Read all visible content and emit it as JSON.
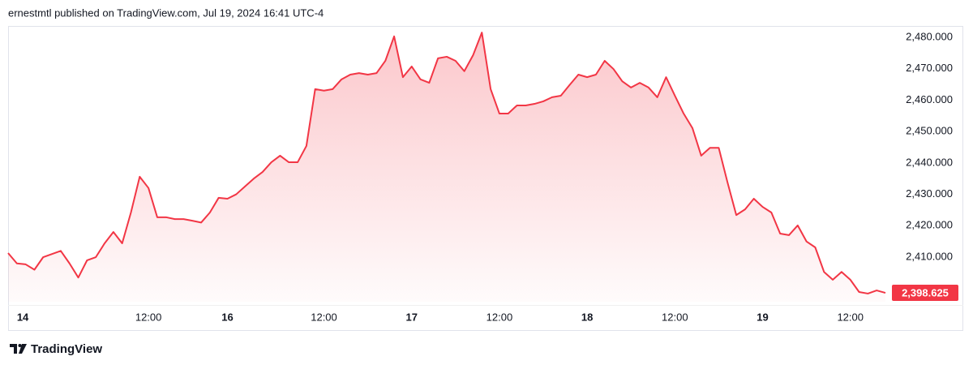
{
  "chart_data": {
    "type": "area",
    "header_note": "ernestmtl published on TradingView.com, Jul 19, 2024 16:41 UTC-4",
    "footer_brand": "TradingView",
    "categories": [
      null,
      "14",
      null,
      null,
      null,
      null,
      null,
      null,
      null,
      null,
      null,
      null,
      null,
      null,
      null,
      null,
      "12:00",
      null,
      null,
      null,
      null,
      null,
      null,
      null,
      null,
      "16",
      null,
      null,
      null,
      null,
      null,
      null,
      null,
      null,
      null,
      null,
      "12:00",
      null,
      null,
      null,
      null,
      null,
      null,
      null,
      null,
      null,
      "17",
      null,
      null,
      null,
      null,
      null,
      null,
      null,
      null,
      null,
      "12:00",
      null,
      null,
      null,
      null,
      null,
      null,
      null,
      null,
      null,
      "18",
      null,
      null,
      null,
      null,
      null,
      null,
      null,
      null,
      null,
      "12:00",
      null,
      null,
      null,
      null,
      null,
      null,
      null,
      null,
      null,
      "19",
      null,
      null,
      null,
      null,
      null,
      null,
      null,
      null,
      null,
      "12:00",
      null,
      null,
      null,
      null
    ],
    "series": [
      {
        "color": "#f23645",
        "values": [
          2411.3,
          2408,
          2407.7,
          2406,
          2410,
          2411,
          2412,
          2408,
          2403.5,
          2409,
          2410,
          2414.4,
          2418,
          2414.4,
          2424.2,
          2435.6,
          2432,
          2422.7,
          2422.7,
          2422.1,
          2422.1,
          2421.6,
          2421,
          2424.2,
          2428.9,
          2428.6,
          2430,
          2432.5,
          2435,
          2437.1,
          2440.2,
          2442.3,
          2440.2,
          2440.2,
          2445.4,
          2463.5,
          2463,
          2463.5,
          2466.6,
          2468.1,
          2468.6,
          2468.1,
          2468.6,
          2472.5,
          2480.3,
          2467.3,
          2470.7,
          2466.6,
          2465.5,
          2473.3,
          2473.8,
          2472.5,
          2469.2,
          2474.3,
          2481.5,
          2463.5,
          2455.7,
          2455.7,
          2458.3,
          2458.3,
          2458.8,
          2459.6,
          2460.9,
          2461.4,
          2464.8,
          2468.1,
          2467.3,
          2468.1,
          2472.5,
          2469.9,
          2466,
          2464,
          2465.5,
          2464,
          2460.9,
          2467.3,
          2461.4,
          2455.7,
          2451.1,
          2442.3,
          2444.8,
          2444.8,
          2433.8,
          2423.4,
          2425.2,
          2428.6,
          2426,
          2424.2,
          2417.5,
          2417,
          2420.1,
          2415,
          2413.1,
          2405.3,
          2402.8,
          2405.3,
          2402.8,
          2398.9,
          2398.4,
          2399.4,
          2398.625
        ],
        "value_labels": [
          null,
          null,
          null,
          null,
          null,
          null,
          null,
          null,
          null,
          null,
          null,
          null,
          null,
          null,
          null,
          null,
          null,
          null,
          null,
          null,
          null,
          null,
          null,
          null,
          null,
          null,
          null,
          null,
          null,
          null,
          null,
          null,
          null,
          null,
          null,
          null,
          null,
          null,
          null,
          null,
          null,
          null,
          null,
          null,
          null,
          null,
          null,
          null,
          null,
          null,
          null,
          null,
          null,
          null,
          null,
          null,
          null,
          null,
          null,
          null,
          null,
          null,
          null,
          null,
          null,
          null,
          null,
          null,
          null,
          null,
          null,
          null,
          null,
          null,
          null,
          null,
          null,
          null,
          null,
          null,
          null,
          null,
          null,
          null,
          null,
          null,
          null,
          null,
          null,
          null,
          null,
          null,
          null,
          null,
          null,
          null,
          null,
          null,
          null,
          null,
          "2,398.625"
        ]
      }
    ],
    "ylim": [
      2395.8,
      2483.6
    ],
    "yticks": [
      {
        "value": 2410,
        "label": "2,410.000"
      },
      {
        "value": 2420,
        "label": "2,420.000"
      },
      {
        "value": 2430,
        "label": "2,430.000"
      },
      {
        "value": 2440,
        "label": "2,440.000"
      },
      {
        "value": 2450,
        "label": "2,450.000"
      },
      {
        "value": 2460,
        "label": "2,460.000"
      },
      {
        "value": 2470,
        "label": "2,470.000"
      },
      {
        "value": 2480,
        "label": "2,480.000"
      }
    ],
    "grid": false
  }
}
